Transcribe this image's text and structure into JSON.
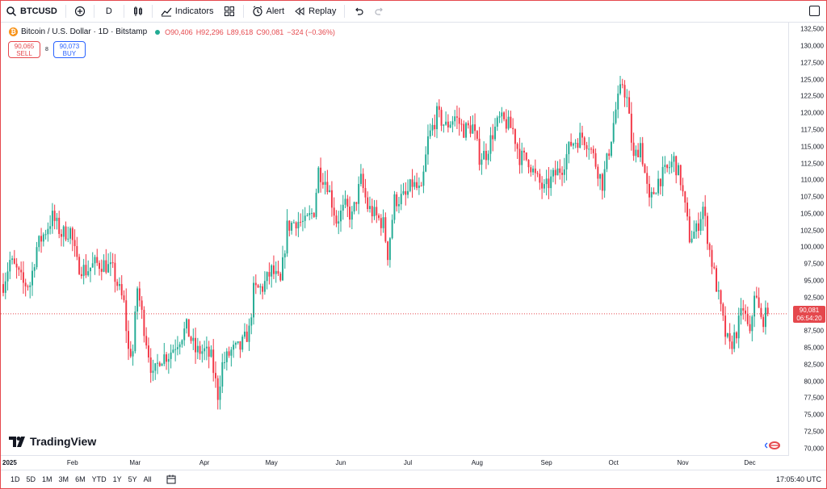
{
  "toolbar": {
    "symbol": "BTCUSD",
    "interval": "D",
    "indicators_label": "Indicators",
    "alert_label": "Alert",
    "replay_label": "Replay"
  },
  "legend": {
    "title": "Bitcoin / U.S. Dollar · 1D · Bitstamp",
    "open": "O90,406",
    "high": "H92,296",
    "low": "L89,618",
    "close": "C90,081",
    "change": "−324 (−0.36%)"
  },
  "trade": {
    "sell_price": "90,065",
    "sell_label": "SELL",
    "spread": "8",
    "buy_price": "90,073",
    "buy_label": "BUY"
  },
  "last_price": {
    "value": "90,081",
    "countdown": "06:54:20"
  },
  "bottom": {
    "ranges": [
      "1D",
      "5D",
      "1M",
      "3M",
      "6M",
      "YTD",
      "1Y",
      "5Y",
      "All"
    ],
    "clock": "17:05:40 UTC"
  },
  "brand": {
    "name": "TradingView"
  },
  "colors": {
    "up": "#22ab94",
    "down": "#f23645",
    "accent": "#2962ff",
    "last_line": "#e5484d"
  },
  "chart_data": {
    "type": "candlestick",
    "y_tick_labels": [
      "132,500",
      "130,000",
      "127,500",
      "125,000",
      "122,500",
      "120,000",
      "117,500",
      "115,000",
      "112,500",
      "110,000",
      "107,500",
      "105,000",
      "102,500",
      "100,000",
      "97,500",
      "95,000",
      "92,500",
      "90,000",
      "87,500",
      "85,000",
      "82,500",
      "80,000",
      "77,500",
      "75,000",
      "72,500",
      "70,000"
    ],
    "y_ticks": [
      132500,
      130000,
      127500,
      125000,
      122500,
      120000,
      117500,
      115000,
      112500,
      110000,
      107500,
      105000,
      102500,
      100000,
      97500,
      95000,
      92500,
      90000,
      87500,
      85000,
      82500,
      80000,
      77500,
      75000,
      72500,
      70000
    ],
    "ylim": [
      69000,
      133500
    ],
    "x_tick_labels": [
      "2025",
      "Feb",
      "Mar",
      "Apr",
      "May",
      "Jun",
      "Jul",
      "Aug",
      "Sep",
      "Oct",
      "Nov",
      "Dec"
    ],
    "x_tick_dates": [
      "2025-01-01",
      "2025-02-01",
      "2025-03-01",
      "2025-04-01",
      "2025-05-01",
      "2025-06-01",
      "2025-07-01",
      "2025-08-01",
      "2025-09-01",
      "2025-10-01",
      "2025-11-01",
      "2025-12-01"
    ],
    "last_close": 90081,
    "series": [
      {
        "date": "2025-01-01",
        "close": 94500
      },
      {
        "date": "2025-01-04",
        "close": 98000
      },
      {
        "date": "2025-01-07",
        "close": 96500
      },
      {
        "date": "2025-01-10",
        "close": 94500
      },
      {
        "date": "2025-01-13",
        "close": 94500
      },
      {
        "date": "2025-01-16",
        "close": 100000
      },
      {
        "date": "2025-01-20",
        "close": 102500
      },
      {
        "date": "2025-01-23",
        "close": 104500
      },
      {
        "date": "2025-01-27",
        "close": 102000
      },
      {
        "date": "2025-01-31",
        "close": 102500
      },
      {
        "date": "2025-02-03",
        "close": 97500
      },
      {
        "date": "2025-02-07",
        "close": 96500
      },
      {
        "date": "2025-02-11",
        "close": 97500
      },
      {
        "date": "2025-02-15",
        "close": 97500
      },
      {
        "date": "2025-02-19",
        "close": 96500
      },
      {
        "date": "2025-02-24",
        "close": 91500
      },
      {
        "date": "2025-02-26",
        "close": 84500
      },
      {
        "date": "2025-02-28",
        "close": 84500
      },
      {
        "date": "2025-03-02",
        "close": 94000
      },
      {
        "date": "2025-03-05",
        "close": 88000
      },
      {
        "date": "2025-03-09",
        "close": 80500
      },
      {
        "date": "2025-03-12",
        "close": 83500
      },
      {
        "date": "2025-03-16",
        "close": 84000
      },
      {
        "date": "2025-03-20",
        "close": 86000
      },
      {
        "date": "2025-03-24",
        "close": 88000
      },
      {
        "date": "2025-03-28",
        "close": 84500
      },
      {
        "date": "2025-04-01",
        "close": 84500
      },
      {
        "date": "2025-04-04",
        "close": 83500
      },
      {
        "date": "2025-04-07",
        "close": 78000
      },
      {
        "date": "2025-04-09",
        "close": 82500
      },
      {
        "date": "2025-04-13",
        "close": 84500
      },
      {
        "date": "2025-04-17",
        "close": 85000
      },
      {
        "date": "2025-04-21",
        "close": 87500
      },
      {
        "date": "2025-04-23",
        "close": 93500
      },
      {
        "date": "2025-04-27",
        "close": 94000
      },
      {
        "date": "2025-05-01",
        "close": 96500
      },
      {
        "date": "2025-05-05",
        "close": 94500
      },
      {
        "date": "2025-05-08",
        "close": 103000
      },
      {
        "date": "2025-05-12",
        "close": 104000
      },
      {
        "date": "2025-05-16",
        "close": 103500
      },
      {
        "date": "2025-05-20",
        "close": 105500
      },
      {
        "date": "2025-05-22",
        "close": 111500
      },
      {
        "date": "2025-05-26",
        "close": 109500
      },
      {
        "date": "2025-05-30",
        "close": 104000
      },
      {
        "date": "2025-06-03",
        "close": 106000
      },
      {
        "date": "2025-06-06",
        "close": 104500
      },
      {
        "date": "2025-06-10",
        "close": 110000
      },
      {
        "date": "2025-06-13",
        "close": 106000
      },
      {
        "date": "2025-06-17",
        "close": 104500
      },
      {
        "date": "2025-06-20",
        "close": 103500
      },
      {
        "date": "2025-06-22",
        "close": 99000
      },
      {
        "date": "2025-06-25",
        "close": 107000
      },
      {
        "date": "2025-06-30",
        "close": 107500
      },
      {
        "date": "2025-07-03",
        "close": 109500
      },
      {
        "date": "2025-07-07",
        "close": 108000
      },
      {
        "date": "2025-07-10",
        "close": 116000
      },
      {
        "date": "2025-07-14",
        "close": 119800
      },
      {
        "date": "2025-07-18",
        "close": 118000
      },
      {
        "date": "2025-07-22",
        "close": 119500
      },
      {
        "date": "2025-07-26",
        "close": 117500
      },
      {
        "date": "2025-07-30",
        "close": 118000
      },
      {
        "date": "2025-08-02",
        "close": 113500
      },
      {
        "date": "2025-08-05",
        "close": 114000
      },
      {
        "date": "2025-08-08",
        "close": 117000
      },
      {
        "date": "2025-08-11",
        "close": 119000
      },
      {
        "date": "2025-08-14",
        "close": 118500
      },
      {
        "date": "2025-08-17",
        "close": 117500
      },
      {
        "date": "2025-08-20",
        "close": 113500
      },
      {
        "date": "2025-08-24",
        "close": 113000
      },
      {
        "date": "2025-08-27",
        "close": 110500
      },
      {
        "date": "2025-08-31",
        "close": 108500
      },
      {
        "date": "2025-09-04",
        "close": 110500
      },
      {
        "date": "2025-09-08",
        "close": 112000
      },
      {
        "date": "2025-09-12",
        "close": 115500
      },
      {
        "date": "2025-09-17",
        "close": 116500
      },
      {
        "date": "2025-09-20",
        "close": 115500
      },
      {
        "date": "2025-09-23",
        "close": 112500
      },
      {
        "date": "2025-09-26",
        "close": 109500
      },
      {
        "date": "2025-09-29",
        "close": 114500
      },
      {
        "date": "2025-10-02",
        "close": 120500
      },
      {
        "date": "2025-10-05",
        "close": 124500
      },
      {
        "date": "2025-10-07",
        "close": 122000
      },
      {
        "date": "2025-10-10",
        "close": 113000
      },
      {
        "date": "2025-10-13",
        "close": 115500
      },
      {
        "date": "2025-10-17",
        "close": 106500
      },
      {
        "date": "2025-10-21",
        "close": 110000
      },
      {
        "date": "2025-10-25",
        "close": 111500
      },
      {
        "date": "2025-10-28",
        "close": 113000
      },
      {
        "date": "2025-10-31",
        "close": 110000
      },
      {
        "date": "2025-11-04",
        "close": 101500
      },
      {
        "date": "2025-11-07",
        "close": 102500
      },
      {
        "date": "2025-11-10",
        "close": 106000
      },
      {
        "date": "2025-11-13",
        "close": 99500
      },
      {
        "date": "2025-11-17",
        "close": 92500
      },
      {
        "date": "2025-11-20",
        "close": 87000
      },
      {
        "date": "2025-11-22",
        "close": 85000
      },
      {
        "date": "2025-11-25",
        "close": 87500
      },
      {
        "date": "2025-11-28",
        "close": 91000
      },
      {
        "date": "2025-12-01",
        "close": 86500
      },
      {
        "date": "2025-12-03",
        "close": 93500
      },
      {
        "date": "2025-12-06",
        "close": 89000
      },
      {
        "date": "2025-12-09",
        "close": 90081
      }
    ]
  }
}
